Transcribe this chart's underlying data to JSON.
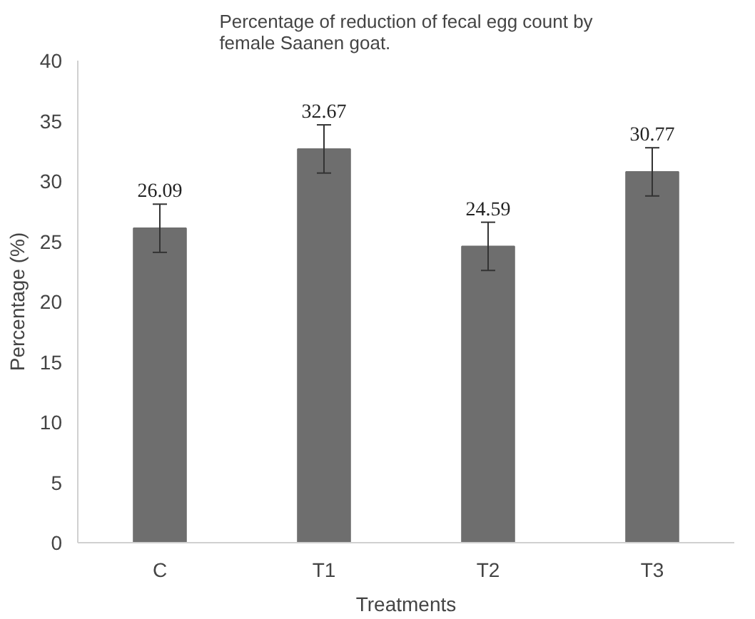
{
  "chart_data": {
    "type": "bar",
    "title": "Percentage of reduction of fecal egg count by\nfemale Saanen goat.",
    "xlabel": "Treatments",
    "ylabel": "Percentage (%)",
    "categories": [
      "C",
      "T1",
      "T2",
      "T3"
    ],
    "values": [
      26.09,
      32.67,
      24.59,
      30.77
    ],
    "errors": [
      2,
      2,
      2,
      2
    ],
    "color": "#6e6e6e",
    "data_labels": true,
    "ylim": [
      0,
      40
    ],
    "yticks": [
      0,
      5,
      10,
      15,
      20,
      25,
      30,
      35,
      40
    ],
    "grid": false
  }
}
